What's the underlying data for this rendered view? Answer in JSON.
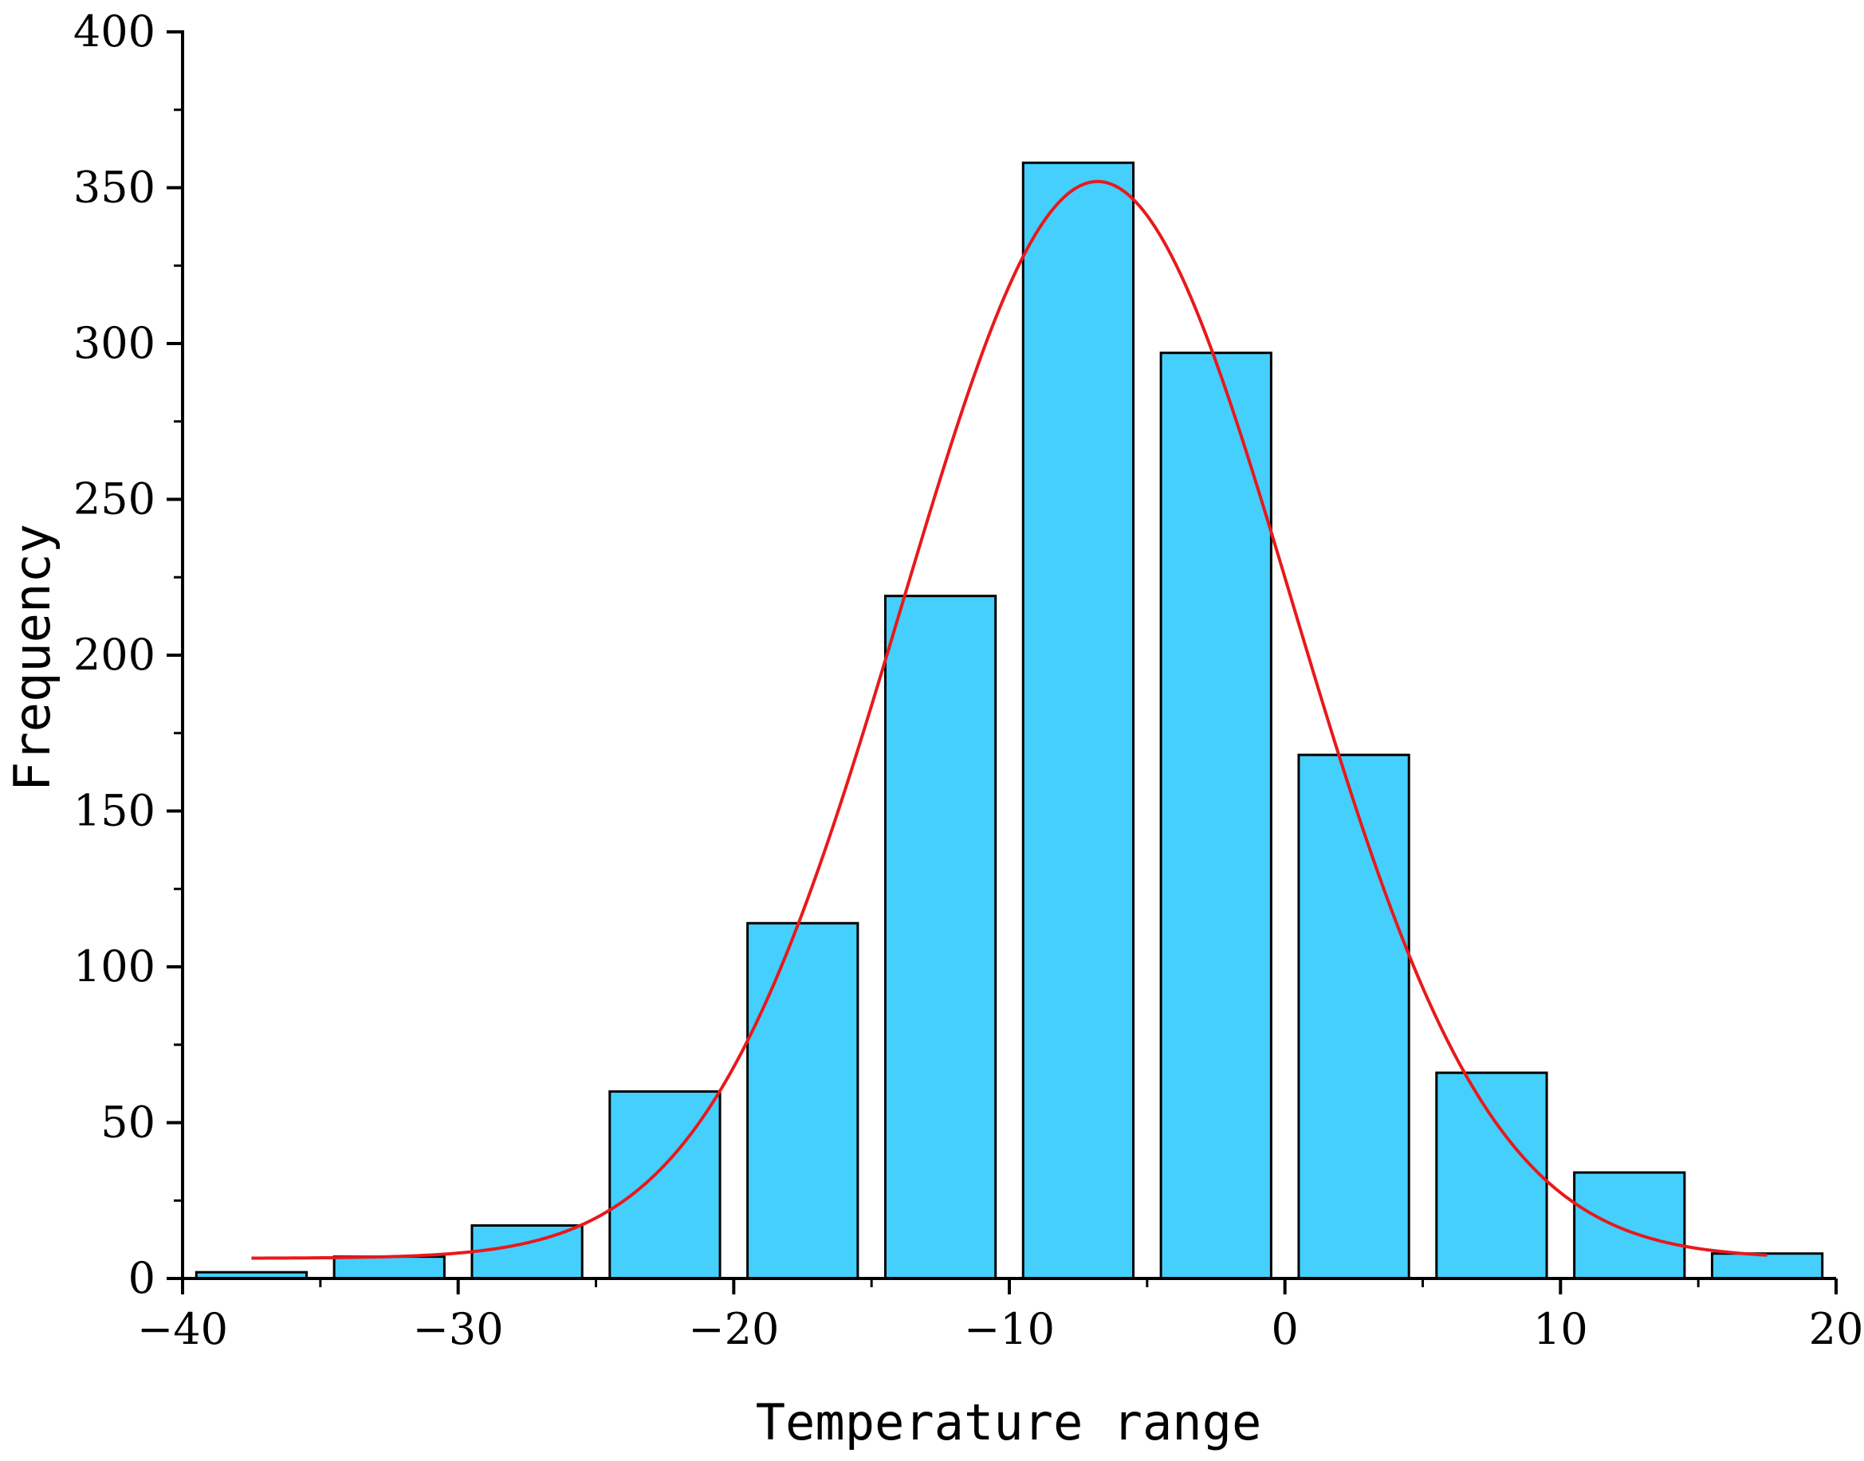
{
  "chart_data": {
    "type": "bar",
    "title": "",
    "xlabel": "Temperature range",
    "ylabel": "Frequency",
    "xlim": [
      -40,
      20
    ],
    "ylim": [
      0,
      400
    ],
    "x_ticks": [
      -40,
      -30,
      -20,
      -10,
      0,
      10,
      20
    ],
    "x_tick_labels": [
      "−40",
      "−30",
      "−20",
      "−10",
      "0",
      "10",
      "20"
    ],
    "y_ticks": [
      0,
      50,
      100,
      150,
      200,
      250,
      300,
      350,
      400
    ],
    "y_tick_labels": [
      "0",
      "50",
      "100",
      "150",
      "200",
      "250",
      "300",
      "350",
      "400"
    ],
    "bins": [
      {
        "x0": -40,
        "x1": -35,
        "value": 2
      },
      {
        "x0": -35,
        "x1": -30,
        "value": 7
      },
      {
        "x0": -30,
        "x1": -25,
        "value": 17
      },
      {
        "x0": -25,
        "x1": -20,
        "value": 60
      },
      {
        "x0": -20,
        "x1": -15,
        "value": 114
      },
      {
        "x0": -15,
        "x1": -10,
        "value": 219
      },
      {
        "x0": -10,
        "x1": -5,
        "value": 358
      },
      {
        "x0": -5,
        "x1": 0,
        "value": 297
      },
      {
        "x0": 0,
        "x1": 5,
        "value": 168
      },
      {
        "x0": 5,
        "x1": 10,
        "value": 66
      },
      {
        "x0": 10,
        "x1": 15,
        "value": 34
      },
      {
        "x0": 15,
        "x1": 20,
        "value": 8
      }
    ],
    "fit_curve": {
      "type": "gaussian",
      "baseline": 6.5,
      "peak": 352,
      "center": -6.8,
      "sigma": 7.1,
      "x_range": [
        -37.5,
        17.5
      ]
    },
    "grid": false,
    "colors": {
      "bar_fill": "#45CFFD",
      "bar_edge": "#000000",
      "curve": "#E8191C",
      "axis": "#000000"
    }
  }
}
